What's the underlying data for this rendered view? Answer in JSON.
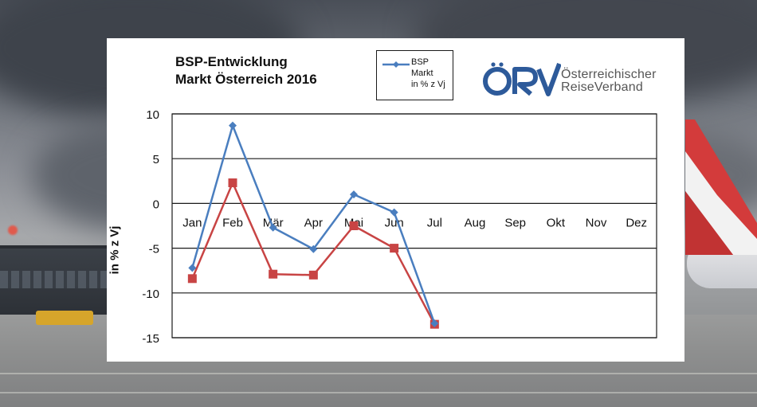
{
  "chart_data": {
    "type": "line",
    "title": "BSP-Entwicklung",
    "subtitle": "Markt Österreich 2016",
    "ylabel": "in % z Vj",
    "xlabel": "",
    "categories": [
      "Jan",
      "Feb",
      "Mär",
      "Apr",
      "Mai",
      "Jun",
      "Jul",
      "Aug",
      "Sep",
      "Okt",
      "Nov",
      "Dez"
    ],
    "ylim": [
      -15,
      10
    ],
    "yticks": [
      10,
      5,
      0,
      -5,
      -10,
      -15
    ],
    "grid": true,
    "legend": {
      "position": "top",
      "lines": [
        "BSP",
        "Markt",
        "in % z Vj"
      ]
    },
    "series": [
      {
        "name": "BSP Markt in % z Vj",
        "color": "#4a7ebf",
        "marker": "diamond",
        "values": [
          -7.2,
          8.7,
          -2.7,
          -5.1,
          1.0,
          -1.0,
          -13.4,
          null,
          null,
          null,
          null,
          null
        ]
      },
      {
        "color": "#c84444",
        "marker": "square",
        "values": [
          -8.4,
          2.3,
          -7.9,
          -8.0,
          -2.5,
          -5.0,
          -13.5,
          null,
          null,
          null,
          null,
          null
        ]
      }
    ]
  },
  "logo": {
    "mark": "ÖRV",
    "line1": "Österreichischer",
    "line2": "ReiseVerband",
    "color": "#2d5a9a"
  }
}
